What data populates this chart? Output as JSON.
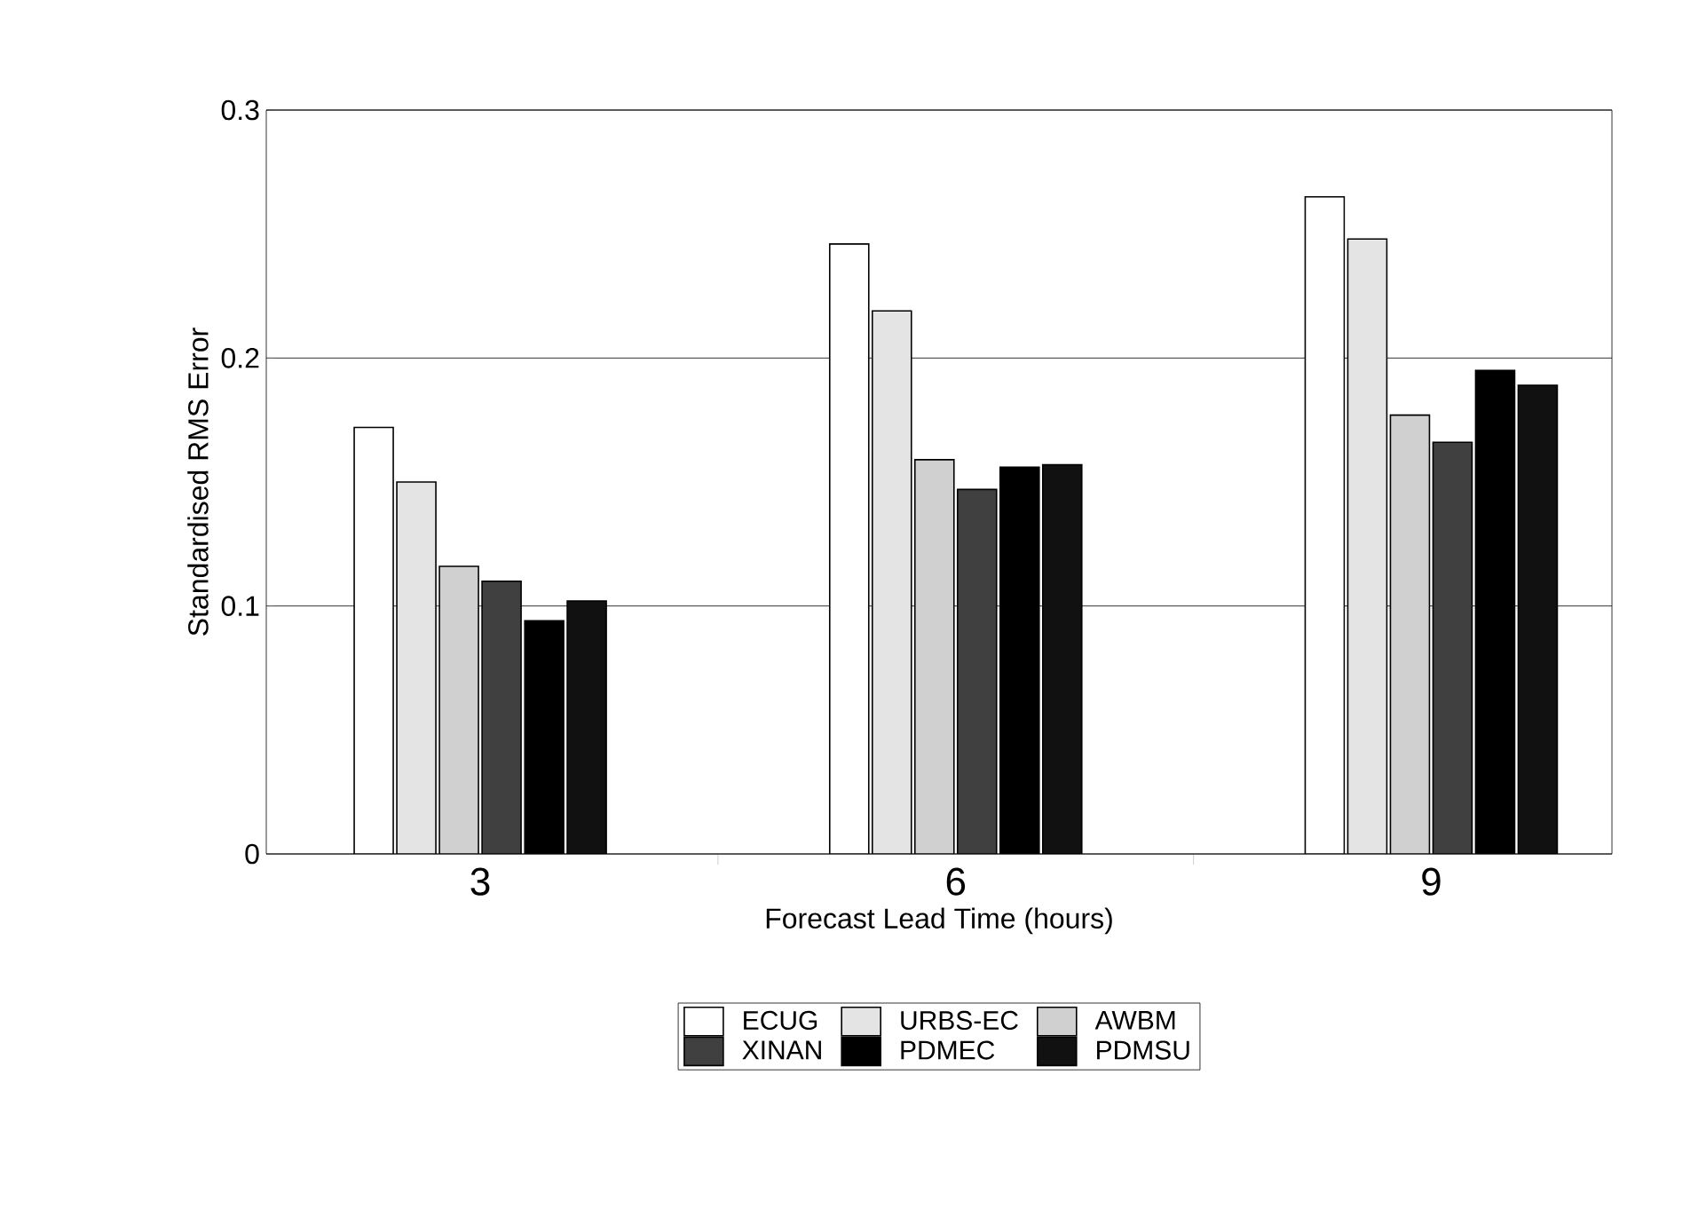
{
  "chart_data": {
    "type": "bar",
    "xlabel": "Forecast Lead Time (hours)",
    "ylabel": "Standardised RMS Error",
    "categories": [
      "3",
      "6",
      "9"
    ],
    "series": [
      {
        "name": "ECUG",
        "color": "#ffffff",
        "values": [
          0.172,
          0.246,
          0.265
        ]
      },
      {
        "name": "URBS-EC",
        "color": "#e4e4e4",
        "values": [
          0.15,
          0.219,
          0.248
        ]
      },
      {
        "name": "AWBM",
        "color": "#d0d0d0",
        "values": [
          0.116,
          0.159,
          0.177
        ]
      },
      {
        "name": "XINAN",
        "color": "#404040",
        "values": [
          0.11,
          0.147,
          0.166
        ]
      },
      {
        "name": "PDMEC",
        "color": "#000000",
        "values": [
          0.094,
          0.156,
          0.195
        ]
      },
      {
        "name": "PDMSU",
        "color": "#111111",
        "values": [
          0.102,
          0.157,
          0.189
        ]
      }
    ],
    "ylim": [
      0,
      0.3
    ],
    "yticks": [
      0,
      0.1,
      0.2,
      0.3
    ],
    "grid": "y",
    "legend": "bottom"
  }
}
